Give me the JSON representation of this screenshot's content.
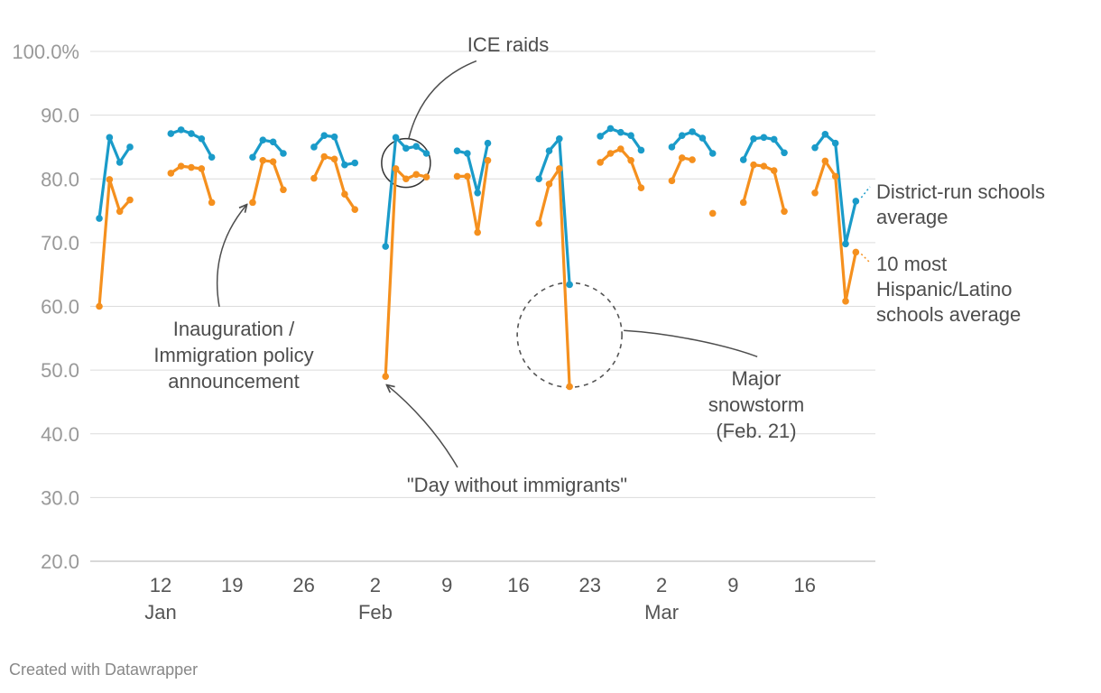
{
  "chart_data": {
    "type": "line",
    "ylim": [
      20,
      100
    ],
    "y_ticks": [
      20,
      30,
      40,
      50,
      60,
      70,
      80,
      90,
      100
    ],
    "y_tick_labels": [
      "20.0",
      "30.0",
      "40.0",
      "50.0",
      "60.0",
      "70.0",
      "80.0",
      "90.0",
      "100.0%"
    ],
    "x_ticks": [
      {
        "date": "2025-01-12",
        "label": "12",
        "month": "Jan"
      },
      {
        "date": "2025-01-19",
        "label": "19",
        "month": ""
      },
      {
        "date": "2025-01-26",
        "label": "26",
        "month": ""
      },
      {
        "date": "2025-02-02",
        "label": "2",
        "month": "Feb"
      },
      {
        "date": "2025-02-09",
        "label": "9",
        "month": ""
      },
      {
        "date": "2025-02-16",
        "label": "16",
        "month": ""
      },
      {
        "date": "2025-02-23",
        "label": "23",
        "month": ""
      },
      {
        "date": "2025-03-02",
        "label": "2",
        "month": "Mar"
      },
      {
        "date": "2025-03-09",
        "label": "9",
        "month": ""
      },
      {
        "date": "2025-03-16",
        "label": "16",
        "month": ""
      }
    ],
    "grid": true,
    "series": [
      {
        "name": "District-run schools average",
        "color": "#1a9bc9",
        "label_color": "#1b8db5",
        "segments": [
          [
            [
              "2025-01-06",
              73.8
            ],
            [
              "2025-01-07",
              86.5
            ],
            [
              "2025-01-08",
              82.6
            ],
            [
              "2025-01-09",
              85.0
            ]
          ],
          [
            [
              "2025-01-13",
              87.1
            ],
            [
              "2025-01-14",
              87.7
            ],
            [
              "2025-01-15",
              87.1
            ],
            [
              "2025-01-16",
              86.3
            ],
            [
              "2025-01-17",
              83.4
            ]
          ],
          [
            [
              "2025-01-21",
              83.4
            ],
            [
              "2025-01-22",
              86.1
            ],
            [
              "2025-01-23",
              85.8
            ],
            [
              "2025-01-24",
              84.0
            ]
          ],
          [
            [
              "2025-01-27",
              85.0
            ],
            [
              "2025-01-28",
              86.8
            ],
            [
              "2025-01-29",
              86.6
            ],
            [
              "2025-01-30",
              82.2
            ],
            [
              "2025-01-31",
              82.5
            ]
          ],
          [
            [
              "2025-02-03",
              69.4
            ],
            [
              "2025-02-04",
              86.5
            ],
            [
              "2025-02-05",
              84.8
            ],
            [
              "2025-02-06",
              85.1
            ],
            [
              "2025-02-07",
              84.0
            ]
          ],
          [
            [
              "2025-02-10",
              84.4
            ],
            [
              "2025-02-11",
              84.0
            ],
            [
              "2025-02-12",
              77.8
            ],
            [
              "2025-02-13",
              85.6
            ]
          ],
          [
            [
              "2025-02-18",
              80.0
            ],
            [
              "2025-02-19",
              84.4
            ],
            [
              "2025-02-20",
              86.3
            ],
            [
              "2025-02-21",
              63.4
            ]
          ],
          [
            [
              "2025-02-24",
              86.7
            ],
            [
              "2025-02-25",
              87.9
            ],
            [
              "2025-02-26",
              87.3
            ],
            [
              "2025-02-27",
              86.8
            ],
            [
              "2025-02-28",
              84.5
            ]
          ],
          [
            [
              "2025-03-03",
              85.0
            ],
            [
              "2025-03-04",
              86.8
            ],
            [
              "2025-03-05",
              87.4
            ],
            [
              "2025-03-06",
              86.4
            ],
            [
              "2025-03-07",
              84.0
            ]
          ],
          [
            [
              "2025-03-10",
              83.0
            ],
            [
              "2025-03-11",
              86.3
            ],
            [
              "2025-03-12",
              86.5
            ],
            [
              "2025-03-13",
              86.2
            ],
            [
              "2025-03-14",
              84.1
            ]
          ],
          [
            [
              "2025-03-17",
              84.9
            ],
            [
              "2025-03-18",
              87.0
            ],
            [
              "2025-03-19",
              85.6
            ],
            [
              "2025-03-20",
              69.8
            ],
            [
              "2025-03-21",
              76.5
            ]
          ]
        ],
        "label_lines": [
          "District-run schools",
          "average"
        ]
      },
      {
        "name": "10 most Hispanic/Latino schools average",
        "color": "#f5901e",
        "label_color": "#d4620a",
        "segments": [
          [
            [
              "2025-01-06",
              60.0
            ],
            [
              "2025-01-07",
              79.9
            ],
            [
              "2025-01-08",
              74.9
            ],
            [
              "2025-01-09",
              76.7
            ]
          ],
          [
            [
              "2025-01-13",
              80.9
            ],
            [
              "2025-01-14",
              82.0
            ],
            [
              "2025-01-15",
              81.8
            ],
            [
              "2025-01-16",
              81.6
            ],
            [
              "2025-01-17",
              76.3
            ]
          ],
          [
            [
              "2025-01-21",
              76.3
            ],
            [
              "2025-01-22",
              82.9
            ],
            [
              "2025-01-23",
              82.7
            ],
            [
              "2025-01-24",
              78.3
            ]
          ],
          [
            [
              "2025-01-27",
              80.1
            ],
            [
              "2025-01-28",
              83.5
            ],
            [
              "2025-01-29",
              83.1
            ],
            [
              "2025-01-30",
              77.6
            ],
            [
              "2025-01-31",
              75.2
            ]
          ],
          [
            [
              "2025-02-03",
              49.0
            ],
            [
              "2025-02-04",
              81.6
            ],
            [
              "2025-02-05",
              80.0
            ],
            [
              "2025-02-06",
              80.7
            ],
            [
              "2025-02-07",
              80.3
            ]
          ],
          [
            [
              "2025-02-10",
              80.4
            ],
            [
              "2025-02-11",
              80.4
            ],
            [
              "2025-02-12",
              71.6
            ],
            [
              "2025-02-13",
              82.9
            ]
          ],
          [
            [
              "2025-02-18",
              73.0
            ],
            [
              "2025-02-19",
              79.2
            ],
            [
              "2025-02-20",
              81.6
            ],
            [
              "2025-02-21",
              47.4
            ]
          ],
          [
            [
              "2025-02-24",
              82.6
            ],
            [
              "2025-02-25",
              84.0
            ],
            [
              "2025-02-26",
              84.7
            ],
            [
              "2025-02-27",
              82.9
            ],
            [
              "2025-02-28",
              78.6
            ]
          ],
          [
            [
              "2025-03-03",
              79.7
            ],
            [
              "2025-03-04",
              83.3
            ],
            [
              "2025-03-05",
              83.0
            ]
          ],
          [
            [
              "2025-03-07",
              74.6
            ]
          ],
          [
            [
              "2025-03-10",
              76.3
            ],
            [
              "2025-03-11",
              82.2
            ],
            [
              "2025-03-12",
              82.0
            ],
            [
              "2025-03-13",
              81.3
            ],
            [
              "2025-03-14",
              74.9
            ]
          ],
          [
            [
              "2025-03-17",
              77.8
            ],
            [
              "2025-03-18",
              82.8
            ],
            [
              "2025-03-19",
              80.4
            ],
            [
              "2025-03-20",
              60.8
            ],
            [
              "2025-03-21",
              68.5
            ]
          ]
        ],
        "label_lines": [
          "10 most",
          "Hispanic/Latino",
          "schools average"
        ]
      }
    ],
    "annotations": [
      {
        "id": "ice-raids",
        "lines": [
          "ICE raids"
        ],
        "target": {
          "date": "2025-02-05",
          "value": 82.5
        }
      },
      {
        "id": "inauguration",
        "lines": [
          "Inauguration /",
          "Immigration policy",
          "announcement"
        ],
        "target": {
          "date": "2025-01-21",
          "value": 76.3
        }
      },
      {
        "id": "day-without-immigrants",
        "lines": [
          "\"Day without immigrants\""
        ],
        "target": {
          "date": "2025-02-03",
          "value": 49.0
        }
      },
      {
        "id": "snowstorm",
        "lines": [
          "Major",
          "snowstorm",
          "(Feb. 21)"
        ],
        "target": {
          "date": "2025-02-21",
          "value": 55.5
        }
      }
    ]
  },
  "footer": {
    "credit": "Created with Datawrapper"
  }
}
